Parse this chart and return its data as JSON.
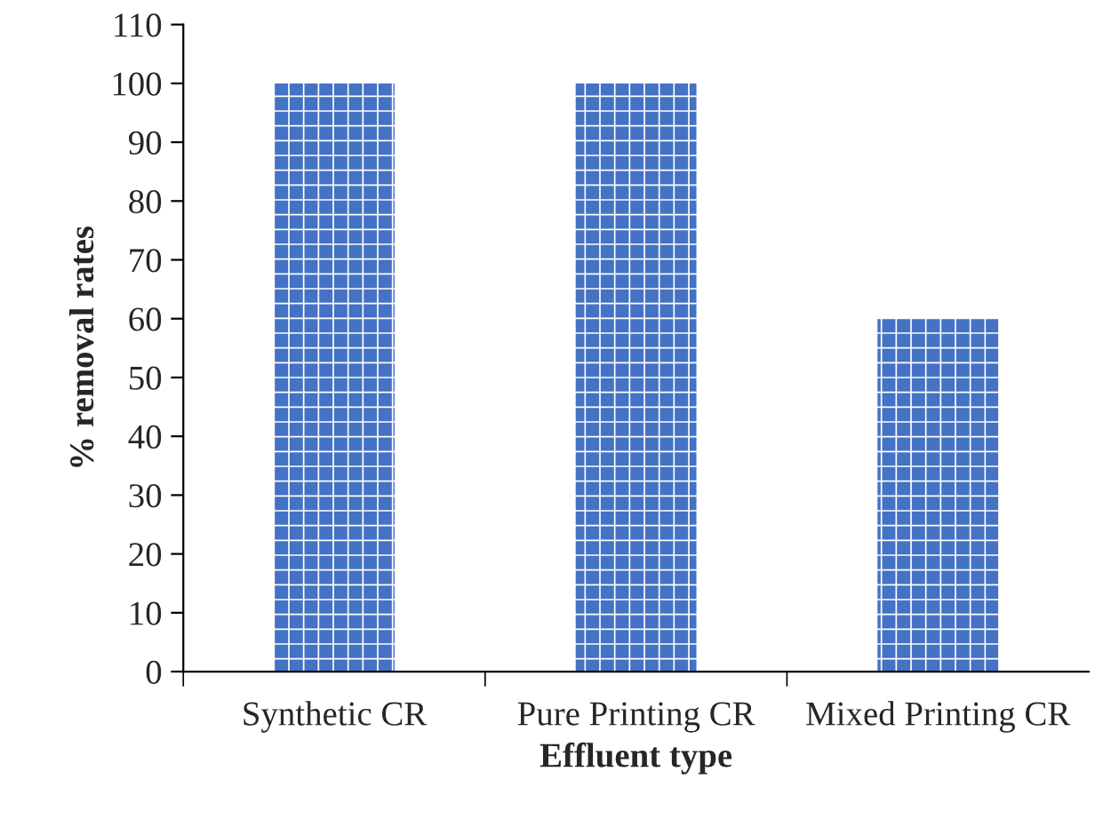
{
  "chart_data": {
    "type": "bar",
    "xlabel": "Effluent type",
    "ylabel": "% removal rates",
    "categories": [
      "Synthetic CR",
      "Pure Printing CR",
      "Mixed Printing CR"
    ],
    "values": [
      100,
      100,
      60
    ],
    "color": "#4472c4",
    "ylim": [
      0,
      110
    ],
    "yticks": [
      0,
      10,
      20,
      30,
      40,
      50,
      60,
      70,
      80,
      90,
      100,
      110
    ],
    "grid": false,
    "legend": false
  }
}
